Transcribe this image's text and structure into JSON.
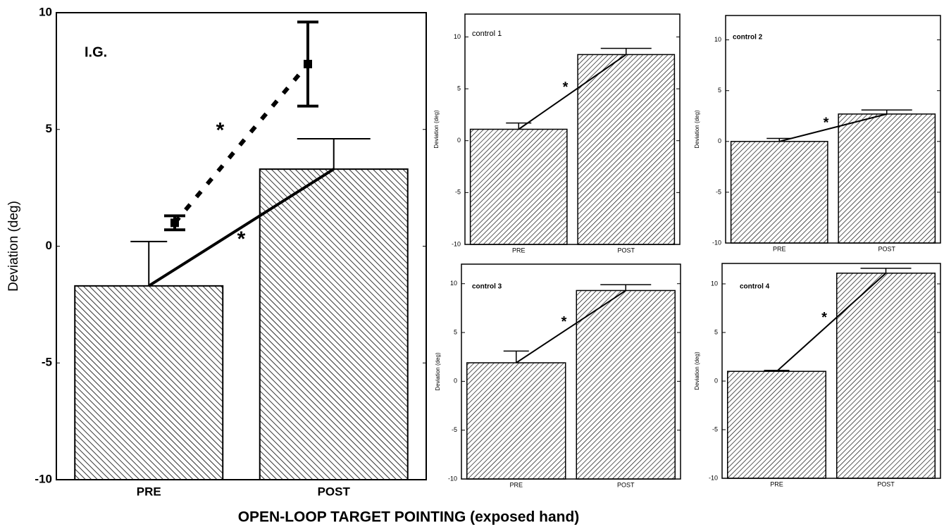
{
  "xlabel": "OPEN-LOOP TARGET POINTING (exposed hand)",
  "chart_data": [
    {
      "type": "bar",
      "title": "I.G.",
      "ylabel": "Deviation (deg)",
      "categories": [
        "PRE",
        "POST"
      ],
      "ylim": [
        -10,
        10
      ],
      "yticks": [
        -10,
        -5,
        0,
        5,
        10
      ],
      "series": [
        {
          "type": "bar",
          "values": [
            -1.7,
            3.3
          ],
          "errors": [
            1.9,
            1.3
          ],
          "color": "#000000"
        },
        {
          "type": "point",
          "values": [
            1.0,
            7.8
          ],
          "errors": [
            0.3,
            1.8
          ],
          "color": "#000000"
        }
      ],
      "annotations": [
        "*",
        "*"
      ]
    },
    {
      "type": "bar",
      "title": "control 1",
      "ylabel": "Deviation (deg)",
      "categories": [
        "PRE",
        "POST"
      ],
      "ylim": [
        -10,
        12.2
      ],
      "yticks": [
        -10,
        -5,
        0,
        5,
        10
      ],
      "series": [
        {
          "type": "bar",
          "values": [
            1.1,
            8.3
          ],
          "errors": [
            0.6,
            0.6
          ],
          "color": "#000000"
        }
      ],
      "annotations": [
        "*"
      ]
    },
    {
      "type": "bar",
      "title": "control 2",
      "ylabel": "Deviation (deg)",
      "categories": [
        "PRE",
        "POST"
      ],
      "ylim": [
        -10,
        12.4
      ],
      "yticks": [
        -10,
        -5,
        0,
        5,
        10
      ],
      "series": [
        {
          "type": "bar",
          "values": [
            0.0,
            2.7
          ],
          "errors": [
            0.3,
            0.4
          ],
          "color": "#000000"
        }
      ],
      "annotations": [
        "*"
      ]
    },
    {
      "type": "bar",
      "title": "control 3",
      "ylabel": "Deviation (deg)",
      "categories": [
        "PRE",
        "POST"
      ],
      "ylim": [
        -10,
        12.0
      ],
      "yticks": [
        -10,
        -5,
        0,
        5,
        10
      ],
      "series": [
        {
          "type": "bar",
          "values": [
            1.9,
            9.3
          ],
          "errors": [
            1.2,
            0.6
          ],
          "color": "#000000"
        }
      ],
      "annotations": [
        "*"
      ]
    },
    {
      "type": "bar",
      "title": "control 4",
      "ylabel": "Deviation (deg)",
      "categories": [
        "PRE",
        "POST"
      ],
      "ylim": [
        -10,
        12.1
      ],
      "yticks": [
        -10,
        -5,
        0,
        5,
        10
      ],
      "series": [
        {
          "type": "bar",
          "values": [
            1.0,
            11.1
          ],
          "errors": [
            0.1,
            0.5
          ],
          "color": "#000000"
        }
      ],
      "annotations": [
        "*"
      ]
    }
  ]
}
